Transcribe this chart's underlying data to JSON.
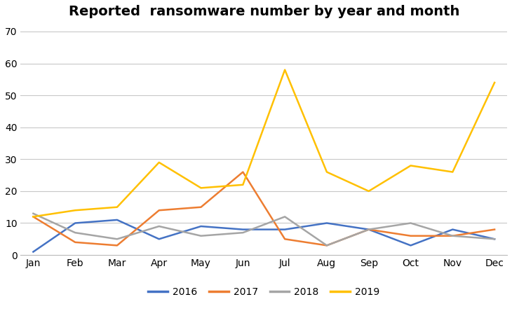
{
  "title": "Reported  ransomware number by year and month",
  "months": [
    "Jan",
    "Feb",
    "Mar",
    "Apr",
    "May",
    "Jun",
    "Jul",
    "Aug",
    "Sep",
    "Oct",
    "Nov",
    "Dec"
  ],
  "series": {
    "2016": [
      1,
      10,
      11,
      5,
      9,
      8,
      8,
      10,
      8,
      3,
      8,
      5
    ],
    "2017": [
      12,
      4,
      3,
      14,
      15,
      26,
      5,
      3,
      8,
      6,
      6,
      8
    ],
    "2018": [
      13,
      7,
      5,
      9,
      6,
      7,
      12,
      3,
      8,
      10,
      6,
      5
    ],
    "2019": [
      12,
      14,
      15,
      29,
      21,
      22,
      58,
      26,
      20,
      28,
      26,
      54
    ]
  },
  "colors": {
    "2016": "#4472C4",
    "2017": "#ED7D31",
    "2018": "#A5A5A5",
    "2019": "#FFC000"
  },
  "ylim": [
    0,
    72
  ],
  "yticks": [
    0,
    10,
    20,
    30,
    40,
    50,
    60,
    70
  ],
  "legend_labels": [
    "2016",
    "2017",
    "2018",
    "2019"
  ],
  "background_color": "#ffffff",
  "grid_color": "#c8c8c8",
  "title_fontsize": 14,
  "tick_fontsize": 10,
  "legend_fontsize": 10
}
